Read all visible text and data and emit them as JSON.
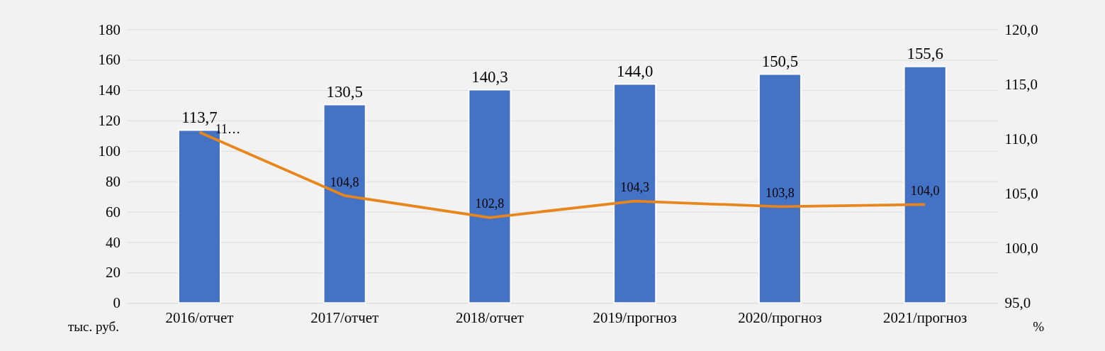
{
  "chart_data": {
    "type": "bar",
    "categories": [
      "2016/отчет",
      "2017/отчет",
      "2018/отчет",
      "2019/прогноз",
      "2020/прогноз",
      "2021/прогноз"
    ],
    "ylabel": "тыс. руб.",
    "y2label": "%",
    "ylim": [
      0,
      180
    ],
    "yticks": [
      0,
      20,
      40,
      60,
      80,
      100,
      120,
      140,
      160,
      180
    ],
    "y2lim": [
      95,
      120
    ],
    "y2ticks": [
      {
        "value": 95,
        "label": "95,0"
      },
      {
        "value": 100,
        "label": "100,0"
      },
      {
        "value": 105,
        "label": "105,0"
      },
      {
        "value": 110,
        "label": "110,0"
      },
      {
        "value": 115,
        "label": "115,0"
      },
      {
        "value": 120,
        "label": "120,0"
      }
    ],
    "grid": "y",
    "series": [
      {
        "color": "#4472c4",
        "values": [
          113.7,
          130.5,
          140.3,
          144.0,
          150.5,
          155.6
        ],
        "value_labels": [
          "113,7",
          "130,5",
          "140,3",
          "144,0",
          "150,5",
          "155,6"
        ]
      },
      {
        "type": "line",
        "axis": "y2",
        "color": "#e6861c",
        "marker": "none",
        "line_style": "solid",
        "values": [
          110.6,
          104.8,
          102.8,
          104.3,
          103.8,
          104.0
        ],
        "value_labels": [
          "11…",
          "104,8",
          "102,8",
          "104,3",
          "103,8",
          "104,0"
        ]
      }
    ]
  }
}
